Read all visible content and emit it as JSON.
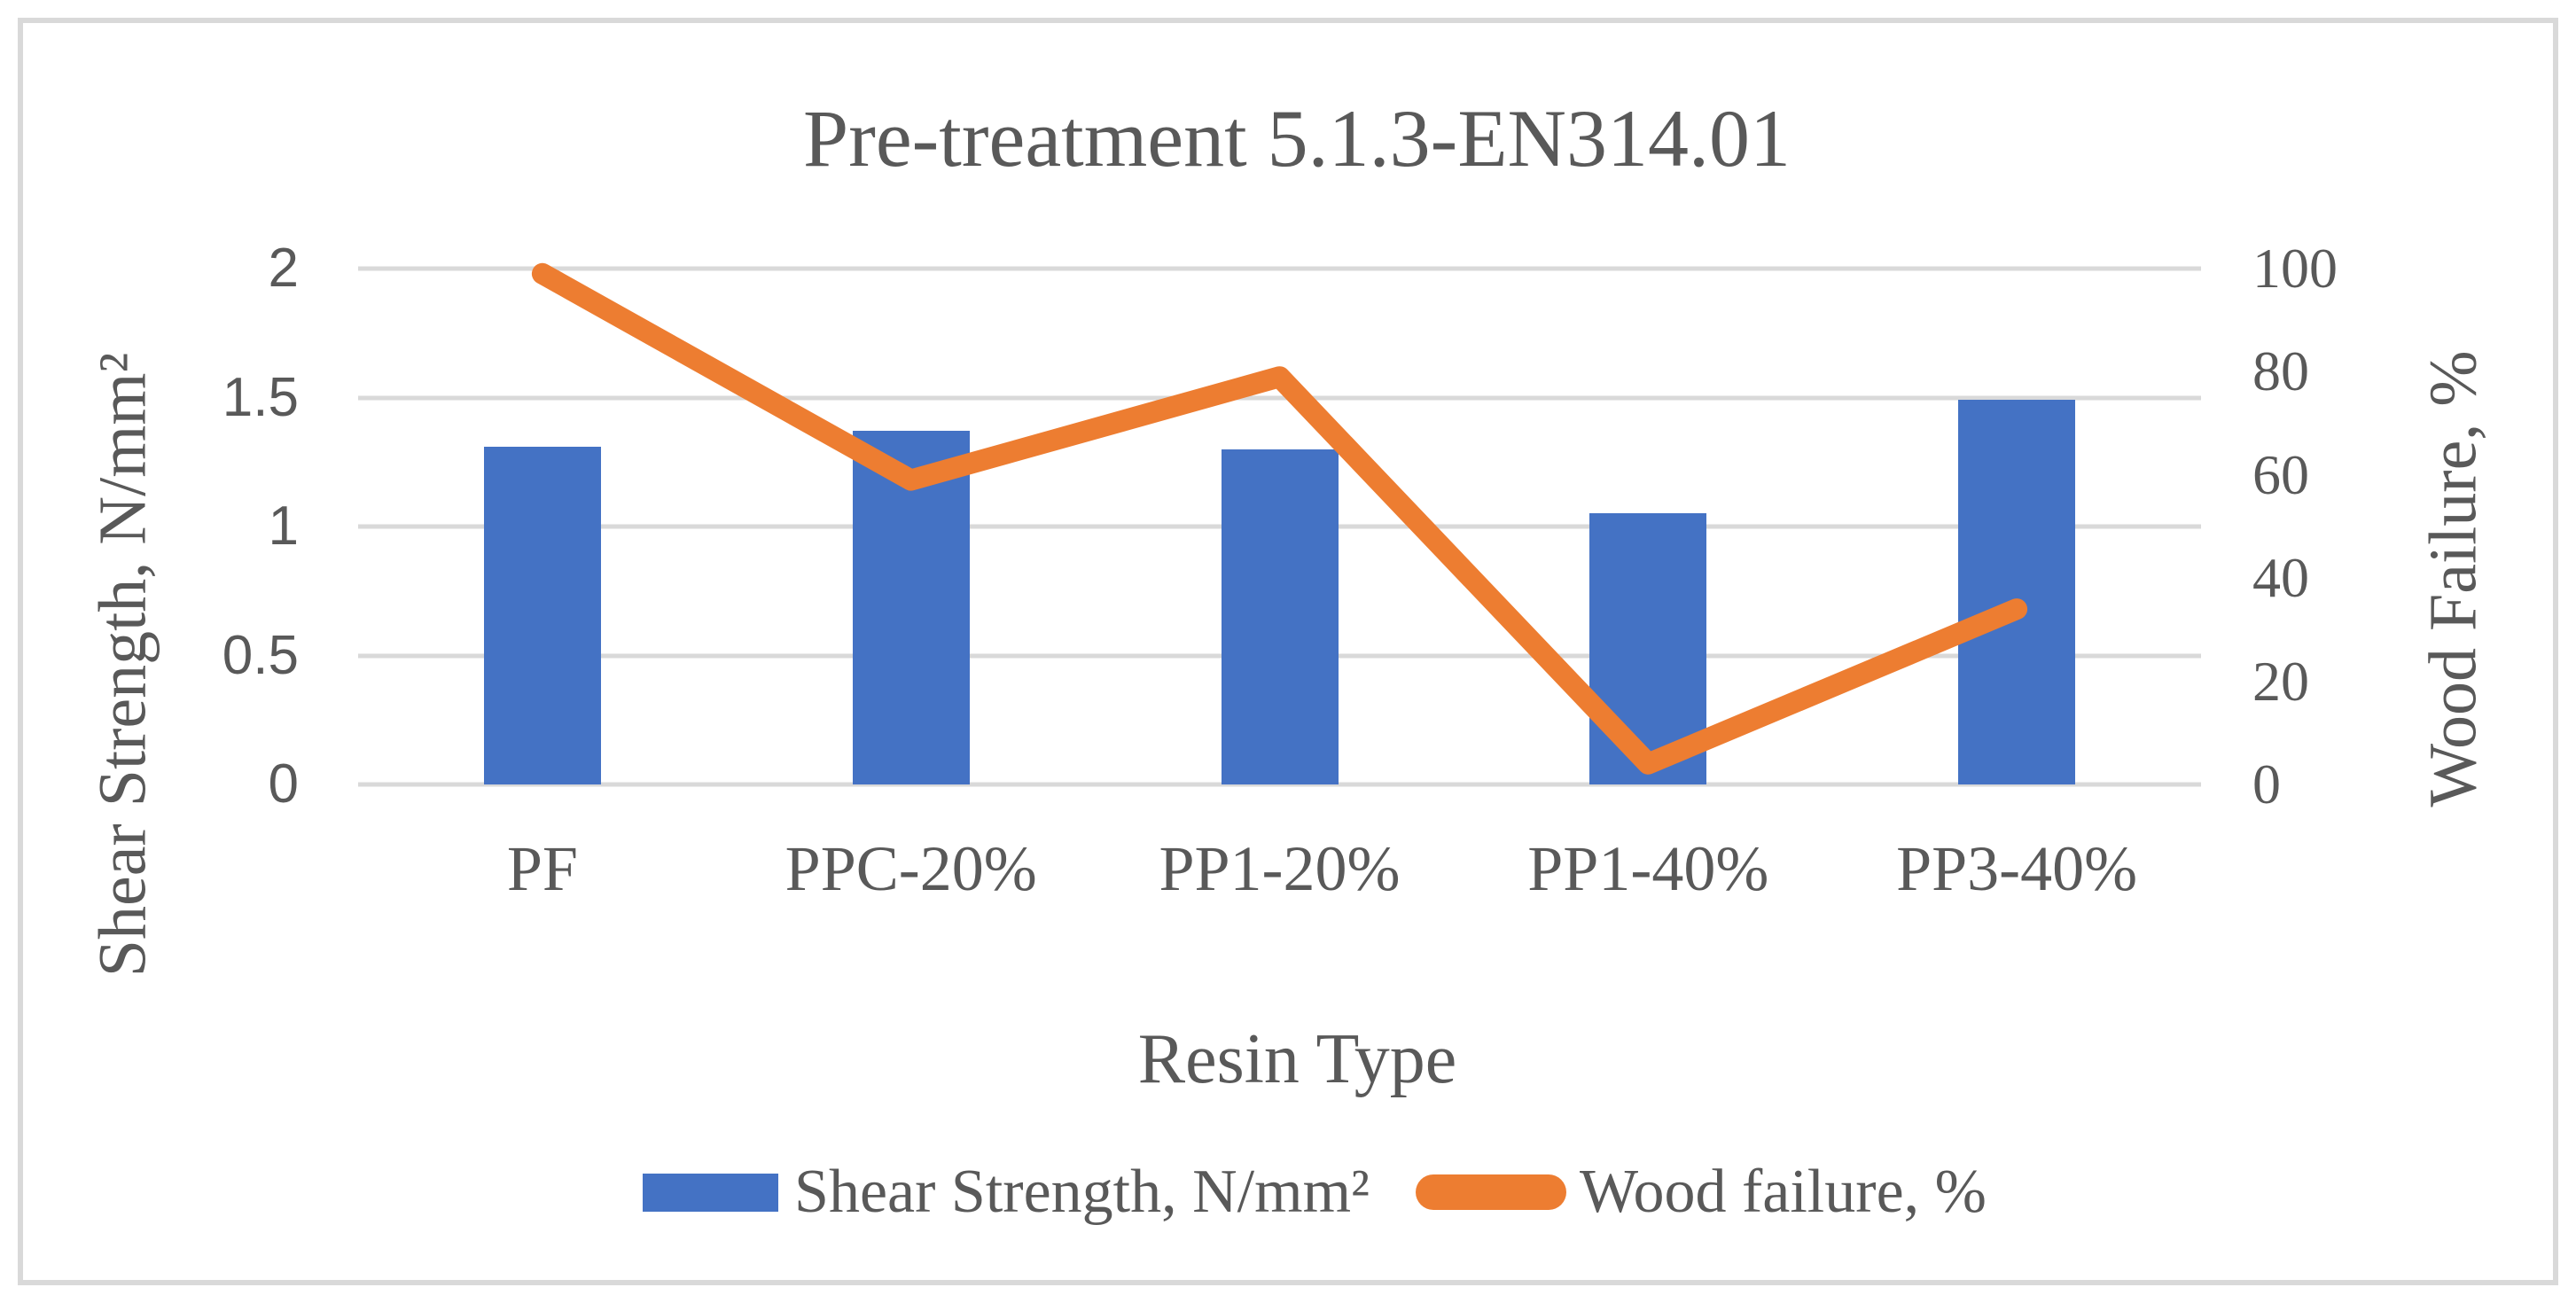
{
  "title": "Pre-treatment 5.1.3-EN314.01",
  "chart_data": {
    "type": "bar",
    "subtype": "combo-bar-line-dual-axis",
    "title": "Pre-treatment 5.1.3-EN314.01",
    "categories": [
      "PF",
      "PPC-20%",
      "PP1-20%",
      "PP1-40%",
      "PP3-40%"
    ],
    "series": [
      {
        "name": "Shear Strength, N/mm²",
        "type": "bar",
        "axis": "left",
        "color": "#4472C4",
        "values": [
          1.31,
          1.37,
          1.3,
          1.05,
          1.49
        ]
      },
      {
        "name": "Wood failure, %",
        "type": "line",
        "axis": "right",
        "color": "#ED7D31",
        "values": [
          99,
          59,
          79,
          4,
          34
        ]
      }
    ],
    "xlabel": "Resin Type",
    "ylabel_left": "Shear Strength, N/mm²",
    "ylabel_right": "Wood Failure, %",
    "y_left": {
      "min": 0,
      "max": 2,
      "ticks": [
        2,
        1.5,
        1,
        0.5,
        0
      ]
    },
    "y_right": {
      "min": 0,
      "max": 100,
      "ticks": [
        100,
        80,
        60,
        40,
        20,
        0
      ]
    },
    "grid": "horizontal major gridlines, primary axis only",
    "legend_position": "bottom"
  },
  "legend": {
    "items": [
      {
        "label": "Shear Strength, N/mm²",
        "swatch": "bar-rect"
      },
      {
        "label": "Wood failure, %",
        "swatch": "line-rounded"
      }
    ]
  },
  "colors": {
    "bar": "#4472C4",
    "line": "#ED7D31",
    "text": "#595959",
    "grid": "#D9D9D9",
    "border": "#D9D9D9",
    "background": "#FFFFFF"
  }
}
